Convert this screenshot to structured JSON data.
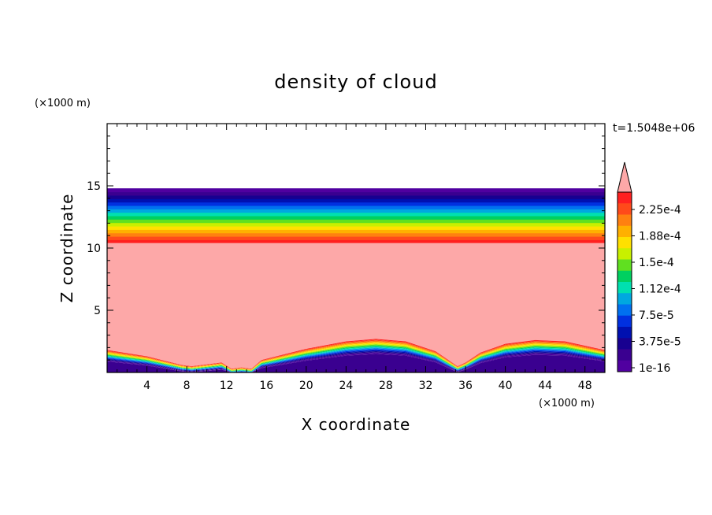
{
  "chart_data": {
    "type": "heatmap",
    "title": "density of cloud",
    "xlabel": "X coordinate",
    "ylabel": "Z coordinate",
    "x_unit": "(×1000 m)",
    "y_unit": "(×1000 m)",
    "time_label": "t=1.5048e+06",
    "xlim": [
      0,
      50
    ],
    "ylim": [
      0,
      20
    ],
    "x_ticks": [
      4,
      8,
      12,
      16,
      20,
      24,
      28,
      32,
      36,
      40,
      44,
      48
    ],
    "y_ticks": [
      5,
      10,
      15
    ],
    "cloud_top": 14.8,
    "cloud_top_field": [
      {
        "x": 0,
        "z": 14.8
      },
      {
        "x": 50,
        "z": 14.8
      }
    ],
    "cloud_saturated_top": 10.4,
    "cloud_base_profile": [
      {
        "x": 0,
        "z": 1.8
      },
      {
        "x": 4,
        "z": 1.3
      },
      {
        "x": 7.5,
        "z": 0.6
      },
      {
        "x": 8.5,
        "z": 0.5
      },
      {
        "x": 11.5,
        "z": 0.8
      },
      {
        "x": 12.5,
        "z": 0.3
      },
      {
        "x": 13.5,
        "z": 0.4
      },
      {
        "x": 14.5,
        "z": 0.3
      },
      {
        "x": 15.5,
        "z": 1.0
      },
      {
        "x": 20,
        "z": 1.9
      },
      {
        "x": 24,
        "z": 2.5
      },
      {
        "x": 27,
        "z": 2.7
      },
      {
        "x": 30,
        "z": 2.5
      },
      {
        "x": 33,
        "z": 1.7
      },
      {
        "x": 35.2,
        "z": 0.5
      },
      {
        "x": 36,
        "z": 0.8
      },
      {
        "x": 37.5,
        "z": 1.6
      },
      {
        "x": 40,
        "z": 2.3
      },
      {
        "x": 43,
        "z": 2.6
      },
      {
        "x": 46,
        "z": 2.5
      },
      {
        "x": 50,
        "z": 1.8
      }
    ],
    "colorbar": {
      "labels": [
        "2.25e-4",
        "1.88e-4",
        "1.5e-4",
        "1.12e-4",
        "7.5e-5",
        "3.75e-5",
        "1e-16"
      ],
      "colors_top_to_bottom": [
        "#ff2020",
        "#ff4a1a",
        "#ff8010",
        "#ffb000",
        "#ffe000",
        "#c8f000",
        "#60e020",
        "#00d060",
        "#00e0b0",
        "#00a8e0",
        "#0070f0",
        "#0030e0",
        "#0010b0",
        "#180090",
        "#3a0090",
        "#5000a0"
      ],
      "over_color": "#fda8a8"
    }
  }
}
